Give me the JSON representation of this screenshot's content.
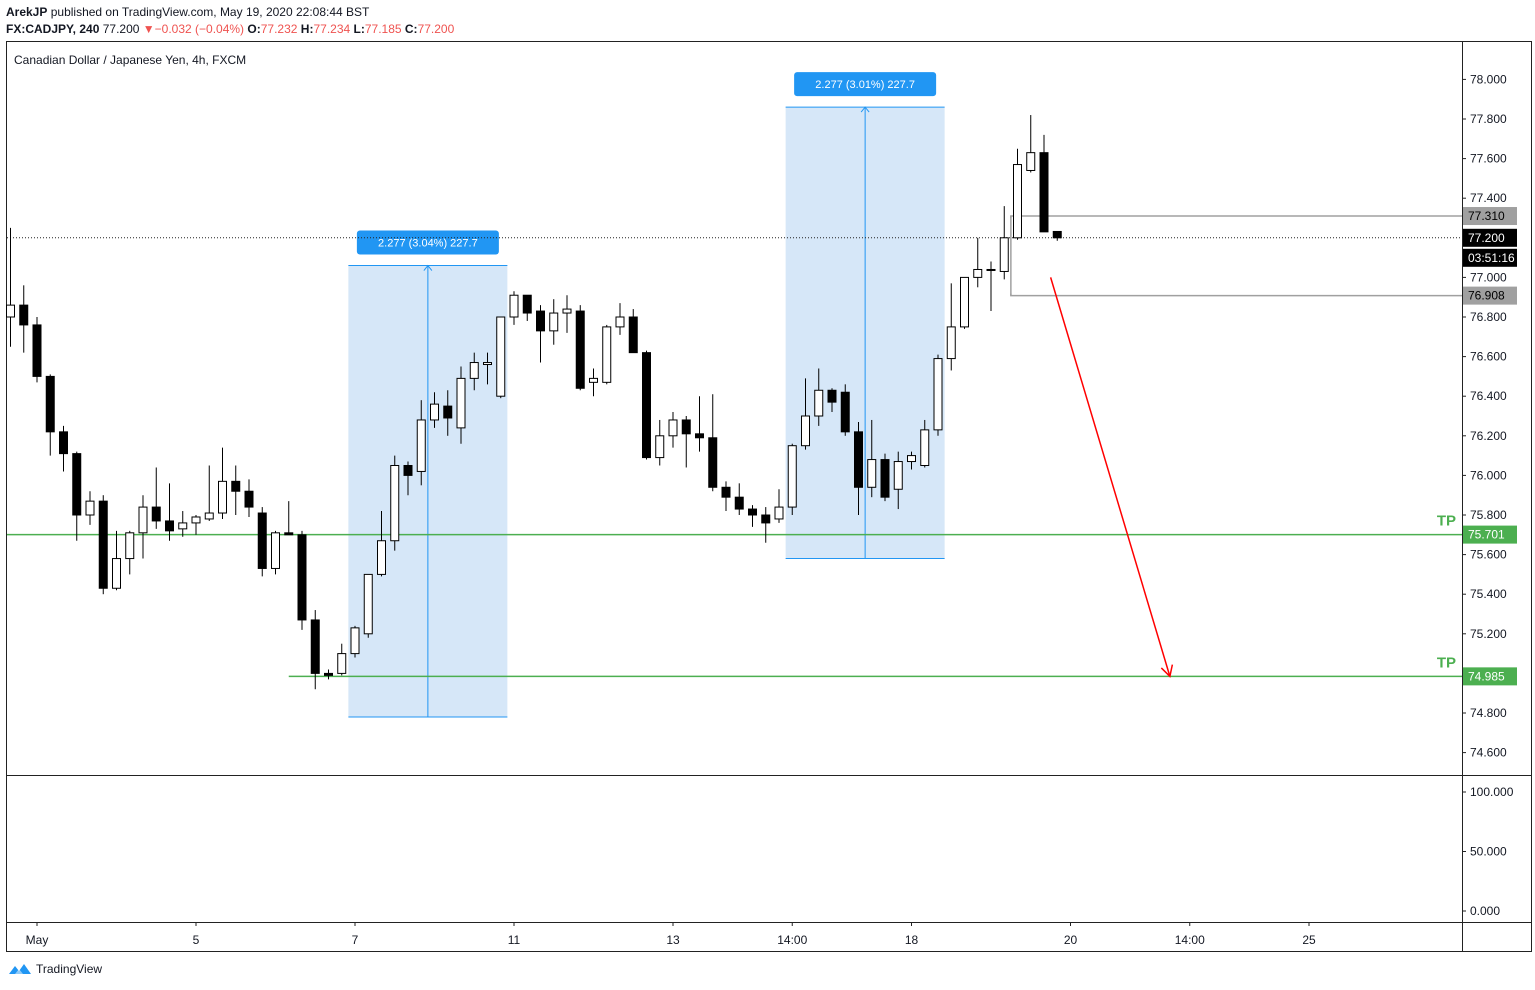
{
  "header": {
    "author": "ArekJP",
    "published_text": "published on TradingView.com, May 19, 2020 22:08:44 BST",
    "symbol": "FX:CADJPY, 240",
    "last": "77.200",
    "change_arrow": "▼",
    "change": "−0.032 (−0.04%)",
    "o_label": "O:",
    "o": "77.232",
    "h_label": "H:",
    "h": "77.234",
    "l_label": "L:",
    "l": "77.185",
    "c_label": "C:",
    "c": "77.200"
  },
  "chart_title": "Canadian Dollar / Japanese Yen, 4h, FXCM",
  "footer": {
    "brand": "TradingView",
    "logo_icon": "tradingview-logo-icon"
  },
  "colors": {
    "up_fill": "#ffffff",
    "down_fill": "#000000",
    "candle_border": "#000000",
    "tp_line": "#4caf50",
    "measure_fill": "#d1e4f7",
    "measure_label": "#2196f3",
    "target_arrow": "#ff0000",
    "level_box": "#a0a0a0",
    "price_tag": "#000000"
  },
  "chart_data": {
    "type": "candlestick",
    "title": "Canadian Dollar / Japanese Yen, 4h, FXCM",
    "ylim": [
      74.45,
      78.25
    ],
    "y_ticks": [
      "78.000",
      "77.800",
      "77.600",
      "77.400",
      "77.200",
      "77.000",
      "76.800",
      "76.600",
      "76.400",
      "76.200",
      "76.000",
      "75.800",
      "75.600",
      "75.400",
      "75.200",
      "75.000",
      "74.800",
      "74.600"
    ],
    "x_ticks": [
      "May",
      "5",
      "7",
      "11",
      "13",
      "14:00",
      "18",
      "20",
      "14:00",
      "25"
    ],
    "x_tick_index": [
      2,
      14,
      26,
      38,
      50,
      59,
      68,
      80,
      89,
      98
    ],
    "candles": [
      {
        "o": 76.8,
        "h": 77.25,
        "l": 76.65,
        "c": 76.86
      },
      {
        "o": 76.86,
        "h": 76.96,
        "l": 76.62,
        "c": 76.76
      },
      {
        "o": 76.76,
        "h": 76.8,
        "l": 76.47,
        "c": 76.5
      },
      {
        "o": 76.5,
        "h": 76.51,
        "l": 76.1,
        "c": 76.22
      },
      {
        "o": 76.22,
        "h": 76.25,
        "l": 76.02,
        "c": 76.11
      },
      {
        "o": 76.11,
        "h": 76.12,
        "l": 75.67,
        "c": 75.8
      },
      {
        "o": 75.8,
        "h": 75.92,
        "l": 75.75,
        "c": 75.87
      },
      {
        "o": 75.87,
        "h": 75.9,
        "l": 75.4,
        "c": 75.43
      },
      {
        "o": 75.43,
        "h": 75.72,
        "l": 75.42,
        "c": 75.58
      },
      {
        "o": 75.58,
        "h": 75.72,
        "l": 75.5,
        "c": 75.71
      },
      {
        "o": 75.71,
        "h": 75.9,
        "l": 75.58,
        "c": 75.84
      },
      {
        "o": 75.84,
        "h": 76.04,
        "l": 75.73,
        "c": 75.77
      },
      {
        "o": 75.77,
        "h": 75.96,
        "l": 75.67,
        "c": 75.72
      },
      {
        "o": 75.73,
        "h": 75.82,
        "l": 75.69,
        "c": 75.76
      },
      {
        "o": 75.76,
        "h": 75.8,
        "l": 75.7,
        "c": 75.79
      },
      {
        "o": 75.78,
        "h": 76.05,
        "l": 75.77,
        "c": 75.81
      },
      {
        "o": 75.81,
        "h": 76.14,
        "l": 75.78,
        "c": 75.97
      },
      {
        "o": 75.97,
        "h": 76.05,
        "l": 75.8,
        "c": 75.92
      },
      {
        "o": 75.92,
        "h": 75.98,
        "l": 75.79,
        "c": 75.84
      },
      {
        "o": 75.81,
        "h": 75.84,
        "l": 75.49,
        "c": 75.53
      },
      {
        "o": 75.53,
        "h": 75.72,
        "l": 75.5,
        "c": 75.71
      },
      {
        "o": 75.71,
        "h": 75.87,
        "l": 75.7,
        "c": 75.7
      },
      {
        "o": 75.7,
        "h": 75.72,
        "l": 75.22,
        "c": 75.27
      },
      {
        "o": 75.27,
        "h": 75.32,
        "l": 74.92,
        "c": 75.0
      },
      {
        "o": 75.0,
        "h": 75.02,
        "l": 74.97,
        "c": 74.99
      },
      {
        "o": 75.0,
        "h": 75.15,
        "l": 74.99,
        "c": 75.1
      },
      {
        "o": 75.1,
        "h": 75.24,
        "l": 75.08,
        "c": 75.23
      },
      {
        "o": 75.2,
        "h": 75.5,
        "l": 75.18,
        "c": 75.5
      },
      {
        "o": 75.5,
        "h": 75.82,
        "l": 75.49,
        "c": 75.67
      },
      {
        "o": 75.67,
        "h": 76.1,
        "l": 75.62,
        "c": 76.05
      },
      {
        "o": 76.05,
        "h": 76.07,
        "l": 75.9,
        "c": 76.0
      },
      {
        "o": 76.02,
        "h": 76.38,
        "l": 75.95,
        "c": 76.28
      },
      {
        "o": 76.28,
        "h": 76.42,
        "l": 76.24,
        "c": 76.36
      },
      {
        "o": 76.35,
        "h": 76.43,
        "l": 76.2,
        "c": 76.29
      },
      {
        "o": 76.24,
        "h": 76.55,
        "l": 76.16,
        "c": 76.49
      },
      {
        "o": 76.49,
        "h": 76.62,
        "l": 76.43,
        "c": 76.57
      },
      {
        "o": 76.56,
        "h": 76.62,
        "l": 76.46,
        "c": 76.57
      },
      {
        "o": 76.4,
        "h": 76.8,
        "l": 76.39,
        "c": 76.8
      },
      {
        "o": 76.8,
        "h": 76.93,
        "l": 76.76,
        "c": 76.91
      },
      {
        "o": 76.91,
        "h": 76.9,
        "l": 76.78,
        "c": 76.82
      },
      {
        "o": 76.83,
        "h": 76.86,
        "l": 76.57,
        "c": 76.73
      },
      {
        "o": 76.73,
        "h": 76.89,
        "l": 76.66,
        "c": 76.82
      },
      {
        "o": 76.82,
        "h": 76.91,
        "l": 76.72,
        "c": 76.84
      },
      {
        "o": 76.83,
        "h": 76.86,
        "l": 76.43,
        "c": 76.44
      },
      {
        "o": 76.47,
        "h": 76.54,
        "l": 76.4,
        "c": 76.49
      },
      {
        "o": 76.47,
        "h": 76.76,
        "l": 76.46,
        "c": 76.75
      },
      {
        "o": 76.75,
        "h": 76.87,
        "l": 76.71,
        "c": 76.8
      },
      {
        "o": 76.8,
        "h": 76.84,
        "l": 76.62,
        "c": 76.62
      },
      {
        "o": 76.62,
        "h": 76.63,
        "l": 76.08,
        "c": 76.09
      },
      {
        "o": 76.09,
        "h": 76.28,
        "l": 76.05,
        "c": 76.2
      },
      {
        "o": 76.2,
        "h": 76.32,
        "l": 76.14,
        "c": 76.28
      },
      {
        "o": 76.28,
        "h": 76.3,
        "l": 76.04,
        "c": 76.21
      },
      {
        "o": 76.21,
        "h": 76.4,
        "l": 76.12,
        "c": 76.19
      },
      {
        "o": 76.19,
        "h": 76.41,
        "l": 75.92,
        "c": 75.94
      },
      {
        "o": 75.94,
        "h": 75.97,
        "l": 75.82,
        "c": 75.89
      },
      {
        "o": 75.89,
        "h": 75.96,
        "l": 75.8,
        "c": 75.83
      },
      {
        "o": 75.83,
        "h": 75.85,
        "l": 75.74,
        "c": 75.8
      },
      {
        "o": 75.8,
        "h": 75.84,
        "l": 75.66,
        "c": 75.76
      },
      {
        "o": 75.78,
        "h": 75.93,
        "l": 75.76,
        "c": 75.84
      },
      {
        "o": 75.84,
        "h": 76.16,
        "l": 75.8,
        "c": 76.15
      },
      {
        "o": 76.15,
        "h": 76.49,
        "l": 76.13,
        "c": 76.3
      },
      {
        "o": 76.3,
        "h": 76.54,
        "l": 76.25,
        "c": 76.43
      },
      {
        "o": 76.43,
        "h": 76.44,
        "l": 76.32,
        "c": 76.37
      },
      {
        "o": 76.42,
        "h": 76.46,
        "l": 76.2,
        "c": 76.22
      },
      {
        "o": 76.22,
        "h": 76.27,
        "l": 75.8,
        "c": 75.94
      },
      {
        "o": 75.94,
        "h": 76.28,
        "l": 75.89,
        "c": 76.08
      },
      {
        "o": 76.08,
        "h": 76.11,
        "l": 75.87,
        "c": 75.89
      },
      {
        "o": 75.93,
        "h": 76.12,
        "l": 75.83,
        "c": 76.07
      },
      {
        "o": 76.07,
        "h": 76.12,
        "l": 76.03,
        "c": 76.1
      },
      {
        "o": 76.05,
        "h": 76.28,
        "l": 76.04,
        "c": 76.23
      },
      {
        "o": 76.23,
        "h": 76.61,
        "l": 76.2,
        "c": 76.59
      },
      {
        "o": 76.59,
        "h": 76.97,
        "l": 76.53,
        "c": 76.75
      },
      {
        "o": 76.75,
        "h": 77.0,
        "l": 76.74,
        "c": 77.0
      },
      {
        "o": 77.0,
        "h": 77.2,
        "l": 76.95,
        "c": 77.04
      },
      {
        "o": 77.04,
        "h": 77.08,
        "l": 76.83,
        "c": 77.04
      },
      {
        "o": 77.03,
        "h": 77.36,
        "l": 76.99,
        "c": 77.2
      },
      {
        "o": 77.2,
        "h": 77.65,
        "l": 77.19,
        "c": 77.57
      },
      {
        "o": 77.54,
        "h": 77.82,
        "l": 77.53,
        "c": 77.63
      },
      {
        "o": 77.63,
        "h": 77.72,
        "l": 77.23,
        "c": 77.23
      },
      {
        "o": 77.232,
        "h": 77.234,
        "l": 77.185,
        "c": 77.2
      }
    ],
    "horizontal_levels": [
      {
        "price": 75.701,
        "label": "TP",
        "tag": "75.701"
      },
      {
        "price": 74.985,
        "label": "TP",
        "tag": "74.985"
      }
    ],
    "last_price": {
      "price": 77.2,
      "tag": "77.200",
      "countdown": "03:51:16"
    },
    "range_box": {
      "top": 77.31,
      "bottom": 76.908,
      "top_tag": "77.310",
      "bottom_tag": "76.908"
    },
    "measurements": [
      {
        "label": "2.277 (3.04%) 227.7",
        "from": 74.78,
        "to": 77.06,
        "start_index": 25.5,
        "end_index": 37.5
      },
      {
        "label": "2.277 (3.01%) 227.7",
        "from": 75.58,
        "to": 77.86,
        "start_index": 58.5,
        "end_index": 70.5
      }
    ],
    "projection_arrow": {
      "from_index": 78.5,
      "from_price": 77.0,
      "to_index": 87.5,
      "to_price": 74.985
    },
    "volume_axis_ticks": [
      "100.000",
      "50.000",
      "0.000"
    ]
  }
}
